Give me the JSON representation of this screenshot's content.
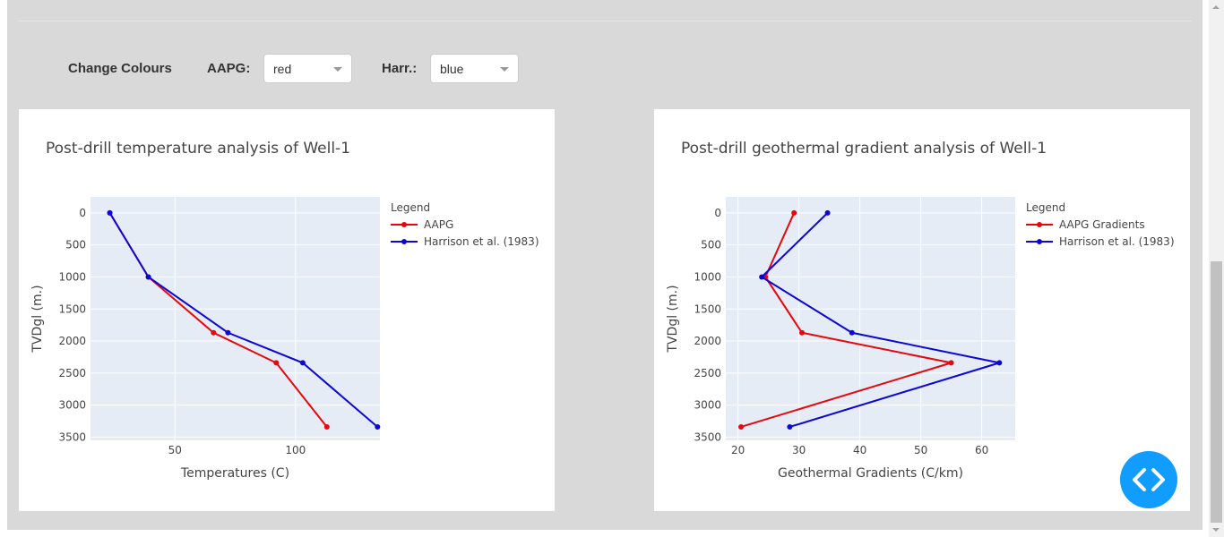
{
  "controls": {
    "change_label": "Change Colours",
    "aapg_label": "AAPG:",
    "aapg_value": "red",
    "harr_label": "Harr.:",
    "harr_value": "blue"
  },
  "colors": {
    "aapg": "#e8060a",
    "harrison": "#0c07d6",
    "plot_bg": "#e5ecf6",
    "fab": "#119dff"
  },
  "icons": {
    "fab": "code-brackets-icon",
    "dropdown": "chevron-down-icon"
  },
  "chart_data": [
    {
      "type": "line",
      "title": "Post-drill temperature analysis of Well-1",
      "xlabel": "Temperatures (C)",
      "ylabel": "TVDgl (m.)",
      "xlim": [
        15,
        135
      ],
      "ylim": [
        3550,
        -250
      ],
      "y_reversed": true,
      "x_ticks": [
        50,
        100
      ],
      "y_ticks": [
        0,
        500,
        1000,
        1500,
        2000,
        2500,
        3000,
        3500
      ],
      "grid": true,
      "legend_title": "Legend",
      "legend_position": "top-right, outside plot",
      "series": [
        {
          "name": "AAPG",
          "color": "#e8060a",
          "x": [
            23,
            39,
            66,
            92,
            113
          ],
          "y": [
            0,
            1000,
            1870,
            2340,
            3340
          ]
        },
        {
          "name": "Harrison et al. (1983)",
          "color": "#0c07d6",
          "x": [
            23,
            39,
            72,
            103,
            134
          ],
          "y": [
            0,
            1000,
            1870,
            2340,
            3340
          ]
        }
      ]
    },
    {
      "type": "line",
      "title": "Post-drill geothermal gradient analysis of Well-1",
      "xlabel": "Geothermal Gradients (C/km)",
      "ylabel": "TVDgl (m.)",
      "xlim": [
        18,
        65.5
      ],
      "ylim": [
        3550,
        -250
      ],
      "y_reversed": true,
      "x_ticks": [
        20,
        30,
        40,
        50,
        60
      ],
      "y_ticks": [
        0,
        500,
        1000,
        1500,
        2000,
        2500,
        3000,
        3500
      ],
      "grid": true,
      "legend_title": "Legend",
      "legend_position": "top-right, outside plot",
      "series": [
        {
          "name": "AAPG Gradients",
          "color": "#e8060a",
          "x": [
            29.2,
            24.5,
            30.5,
            55,
            20.5
          ],
          "y": [
            0,
            1000,
            1870,
            2340,
            3340
          ]
        },
        {
          "name": "Harrison et al. (1983)",
          "color": "#0c07d6",
          "x": [
            34.7,
            23.9,
            38.7,
            62.9,
            28.5
          ],
          "y": [
            0,
            1000,
            1870,
            2340,
            3340
          ]
        }
      ]
    }
  ]
}
